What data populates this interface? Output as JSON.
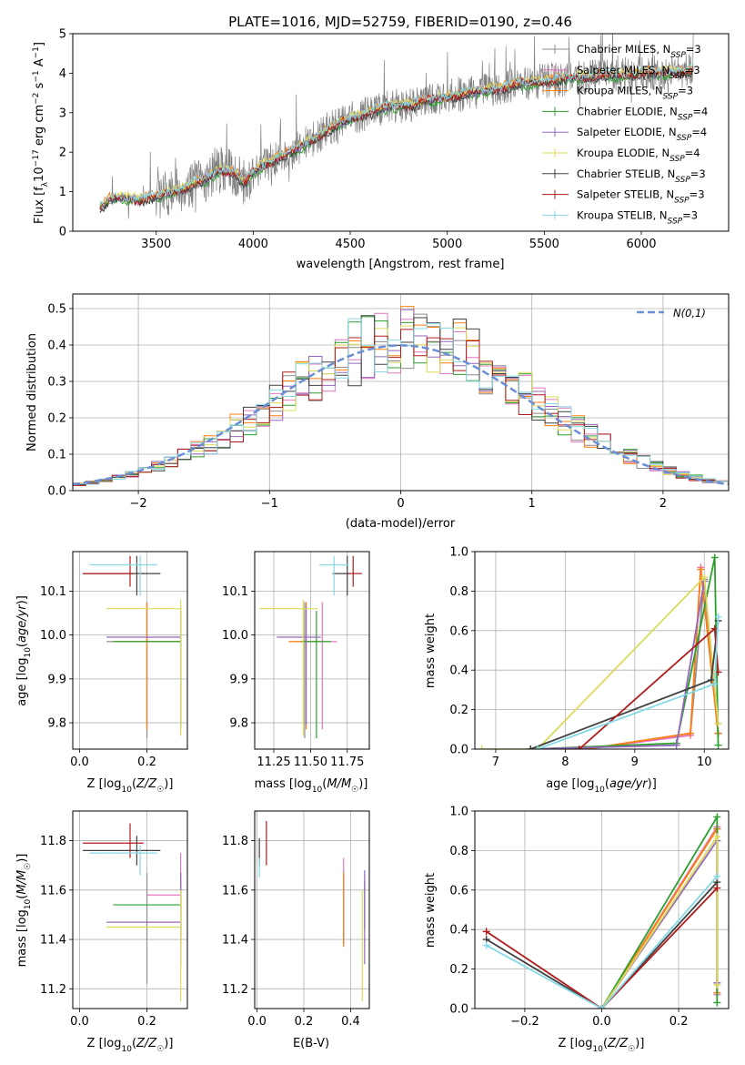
{
  "colors": {
    "Chabrier MILES": "#8c8c8c",
    "Salpeter MILES": "#e377c2",
    "Kroupa MILES": "#ff7f0e",
    "Chabrier ELODIE": "#2ca02c",
    "Salpeter ELODIE": "#9467bd",
    "Kroupa ELODIE": "#dbdb5a",
    "Chabrier STELIB": "#404040",
    "Salpeter STELIB": "#b01c1c",
    "Kroupa STELIB": "#86d9e6",
    "normal": "#6a8fd6"
  },
  "chart_data": [
    {
      "id": "spectrum",
      "type": "line",
      "title": "PLATE=1016, MJD=52759, FIBERID=0190, z=0.46",
      "xlabel": "wavelength [Angstrom, rest frame]",
      "ylabel": "Flux [f_λ10^-17 erg cm^-2 s^-1 A^-1]",
      "xlim": [
        3070,
        6450
      ],
      "ylim": [
        0,
        5
      ],
      "xticks": [
        3500,
        4000,
        4500,
        5000,
        5500,
        6000
      ],
      "yticks": [
        0,
        1,
        2,
        3,
        4,
        5
      ],
      "legend_position": "upper right",
      "legend": [
        {
          "name": "Chabrier MILES",
          "nssp": "3"
        },
        {
          "name": "Salpeter MILES",
          "nssp": "3"
        },
        {
          "name": "Kroupa MILES",
          "nssp": "3"
        },
        {
          "name": "Chabrier ELODIE",
          "nssp": "4"
        },
        {
          "name": "Salpeter ELODIE",
          "nssp": "4"
        },
        {
          "name": "Kroupa ELODIE",
          "nssp": "4"
        },
        {
          "name": "Chabrier STELIB",
          "nssp": "3"
        },
        {
          "name": "Salpeter STELIB",
          "nssp": "3"
        },
        {
          "name": "Kroupa STELIB",
          "nssp": "3"
        }
      ],
      "model_trend": [
        [
          3210,
          0.6
        ],
        [
          3260,
          0.8
        ],
        [
          3320,
          0.85
        ],
        [
          3400,
          0.8
        ],
        [
          3480,
          0.85
        ],
        [
          3550,
          0.95
        ],
        [
          3650,
          1.1
        ],
        [
          3750,
          1.3
        ],
        [
          3830,
          1.55
        ],
        [
          3900,
          1.5
        ],
        [
          3960,
          1.2
        ],
        [
          4000,
          1.5
        ],
        [
          4100,
          1.8
        ],
        [
          4200,
          2.0
        ],
        [
          4300,
          2.3
        ],
        [
          4400,
          2.6
        ],
        [
          4500,
          2.85
        ],
        [
          4600,
          3.0
        ],
        [
          4700,
          3.15
        ],
        [
          4800,
          3.2
        ],
        [
          4900,
          3.3
        ],
        [
          5000,
          3.4
        ],
        [
          5100,
          3.5
        ],
        [
          5200,
          3.55
        ],
        [
          5300,
          3.65
        ],
        [
          5400,
          3.75
        ],
        [
          5500,
          3.8
        ],
        [
          5600,
          3.85
        ],
        [
          5700,
          3.9
        ],
        [
          5800,
          3.95
        ],
        [
          5900,
          3.95
        ],
        [
          6000,
          4.0
        ],
        [
          6100,
          4.0
        ],
        [
          6200,
          4.05
        ],
        [
          6270,
          4.05
        ]
      ]
    },
    {
      "id": "residuals",
      "type": "histogram",
      "xlabel": "(data-model)/error",
      "ylabel": "Normed distribution",
      "xlim": [
        -2.5,
        2.5
      ],
      "ylim": [
        0,
        0.54
      ],
      "xticks": [
        -2,
        -1,
        0,
        1,
        2
      ],
      "yticks": [
        0.0,
        0.1,
        0.2,
        0.3,
        0.4,
        0.5
      ],
      "grid": true,
      "legend_position": "upper right",
      "normal_label": "N(0,1)",
      "bin_width": 0.1
    },
    {
      "id": "age-vs-Z",
      "type": "errorbar",
      "xlabel": "Z [log10(Z/Z☉)]",
      "ylabel": "age [log10(age/yr)]",
      "xlim": [
        -0.02,
        0.32
      ],
      "ylim": [
        9.74,
        10.19
      ],
      "xticks": [
        0.0,
        0.2
      ],
      "yticks": [
        9.8,
        9.9,
        10.0,
        10.1
      ],
      "grid": true,
      "points": [
        {
          "series": "Chabrier MILES",
          "x": 0.2,
          "xerr": [
            0.12,
            0.1
          ],
          "y": 9.985,
          "yerr": [
            0.22,
            0.09
          ]
        },
        {
          "series": "Salpeter MILES",
          "x": 0.2,
          "xerr": [
            0.1,
            0.1
          ],
          "y": 9.985,
          "yerr": [
            0.2,
            0.09
          ]
        },
        {
          "series": "Kroupa MILES",
          "x": 0.2,
          "xerr": [
            0.1,
            0.1
          ],
          "y": 9.985,
          "yerr": [
            0.2,
            0.09
          ]
        },
        {
          "series": "Chabrier ELODIE",
          "x": 0.3,
          "xerr": [
            0.2,
            0.0
          ],
          "y": 9.985,
          "yerr": [
            0.2,
            0.07
          ]
        },
        {
          "series": "Salpeter ELODIE",
          "x": 0.3,
          "xerr": [
            0.22,
            0.0
          ],
          "y": 9.995,
          "yerr": [
            0.2,
            0.07
          ]
        },
        {
          "series": "Kroupa ELODIE",
          "x": 0.3,
          "xerr": [
            0.22,
            0.0
          ],
          "y": 10.06,
          "yerr": [
            0.29,
            0.02
          ]
        },
        {
          "series": "Chabrier STELIB",
          "x": 0.17,
          "xerr": [
            0.16,
            0.07
          ],
          "y": 10.14,
          "yerr": [
            0.05,
            0.04
          ]
        },
        {
          "series": "Salpeter STELIB",
          "x": 0.15,
          "xerr": [
            0.14,
            0.01
          ],
          "y": 10.14,
          "yerr": [
            0.03,
            0.04
          ]
        },
        {
          "series": "Kroupa STELIB",
          "x": 0.18,
          "xerr": [
            0.15,
            0.05
          ],
          "y": 10.16,
          "yerr": [
            0.07,
            0.02
          ]
        }
      ]
    },
    {
      "id": "age-vs-mass",
      "type": "errorbar",
      "xlabel": "mass [log10(M/M☉)]",
      "ylabel": "",
      "xlim": [
        11.12,
        11.9
      ],
      "ylim": [
        9.74,
        10.19
      ],
      "xticks": [
        11.25,
        11.5,
        11.75
      ],
      "yticks": [
        9.8,
        9.9,
        10.0,
        10.1
      ],
      "grid": true,
      "points": [
        {
          "series": "Chabrier MILES",
          "x": 11.46,
          "xerr": [
            0.08,
            0.1
          ],
          "y": 9.985,
          "yerr": [
            0.22,
            0.09
          ]
        },
        {
          "series": "Salpeter MILES",
          "x": 11.58,
          "xerr": [
            0.1,
            0.1
          ],
          "y": 9.985,
          "yerr": [
            0.2,
            0.09
          ]
        },
        {
          "series": "Kroupa MILES",
          "x": 11.47,
          "xerr": [
            0.12,
            0.1
          ],
          "y": 9.985,
          "yerr": [
            0.2,
            0.09
          ]
        },
        {
          "series": "Chabrier ELODIE",
          "x": 11.54,
          "xerr": [
            0.1,
            0.1
          ],
          "y": 9.985,
          "yerr": [
            0.22,
            0.07
          ]
        },
        {
          "series": "Salpeter ELODIE",
          "x": 11.47,
          "xerr": [
            0.2,
            0.1
          ],
          "y": 9.995,
          "yerr": [
            0.2,
            0.07
          ]
        },
        {
          "series": "Kroupa ELODIE",
          "x": 11.45,
          "xerr": [
            0.3,
            0.1
          ],
          "y": 10.06,
          "yerr": [
            0.29,
            0.02
          ]
        },
        {
          "series": "Chabrier STELIB",
          "x": 11.75,
          "xerr": [
            0.1,
            0.02
          ],
          "y": 10.14,
          "yerr": [
            0.05,
            0.04
          ]
        },
        {
          "series": "Salpeter STELIB",
          "x": 11.79,
          "xerr": [
            0.03,
            0.06
          ],
          "y": 10.14,
          "yerr": [
            0.03,
            0.04
          ]
        },
        {
          "series": "Kroupa STELIB",
          "x": 11.66,
          "xerr": [
            0.1,
            0.1
          ],
          "y": 10.16,
          "yerr": [
            0.07,
            0.02
          ]
        }
      ]
    },
    {
      "id": "weight-vs-age",
      "type": "line",
      "xlabel": "age [log10(age/yr)]",
      "ylabel": "mass weight",
      "xlim": [
        6.7,
        10.35
      ],
      "ylim": [
        0,
        1.0
      ],
      "xticks": [
        7,
        8,
        9,
        10
      ],
      "yticks": [
        0.0,
        0.2,
        0.4,
        0.6,
        0.8,
        1.0
      ],
      "grid": true,
      "series": [
        {
          "name": "Chabrier MILES",
          "x": [
            8.3,
            9.8,
            10.0,
            10.2
          ],
          "y": [
            0.0,
            0.08,
            0.86,
            0.08
          ]
        },
        {
          "name": "Salpeter MILES",
          "x": [
            8.3,
            9.8,
            9.95,
            10.2
          ],
          "y": [
            0.0,
            0.07,
            0.92,
            0.08
          ]
        },
        {
          "name": "Kroupa MILES",
          "x": [
            8.3,
            9.8,
            9.95,
            10.2
          ],
          "y": [
            0.0,
            0.08,
            0.91,
            0.08
          ]
        },
        {
          "name": "Chabrier ELODIE",
          "x": [
            7.5,
            9.6,
            10.15,
            10.2
          ],
          "y": [
            0.0,
            0.03,
            0.97,
            0.02
          ]
        },
        {
          "name": "Salpeter ELODIE",
          "x": [
            7.5,
            9.6,
            10.0,
            10.2
          ],
          "y": [
            0.0,
            0.02,
            0.85,
            0.13
          ]
        },
        {
          "name": "Kroupa ELODIE",
          "x": [
            6.8,
            7.6,
            10.0,
            10.2
          ],
          "y": [
            0.0,
            0.0,
            0.87,
            0.13
          ]
        },
        {
          "name": "Chabrier STELIB",
          "x": [
            7.5,
            10.1,
            10.2
          ],
          "y": [
            0.0,
            0.35,
            0.65
          ]
        },
        {
          "name": "Salpeter STELIB",
          "x": [
            8.2,
            10.15,
            10.2
          ],
          "y": [
            0.0,
            0.61,
            0.39
          ]
        },
        {
          "name": "Kroupa STELIB",
          "x": [
            7.6,
            10.15,
            10.2
          ],
          "y": [
            0.0,
            0.33,
            0.67
          ]
        }
      ]
    },
    {
      "id": "mass-vs-Z",
      "type": "errorbar",
      "xlabel": "Z [log10(Z/Z☉)]",
      "ylabel": "mass [log10(M/M☉)]",
      "xlim": [
        -0.02,
        0.32
      ],
      "ylim": [
        11.12,
        11.92
      ],
      "xticks": [
        0.0,
        0.2
      ],
      "yticks": [
        11.2,
        11.4,
        11.6,
        11.8
      ],
      "grid": true,
      "points": [
        {
          "series": "Chabrier MILES",
          "x": 0.2,
          "xerr": [
            0.12,
            0.1
          ],
          "y": 11.47,
          "yerr": [
            0.25,
            0.2
          ]
        },
        {
          "series": "Salpeter MILES",
          "x": 0.3,
          "xerr": [
            0.1,
            0.0
          ],
          "y": 11.58,
          "yerr": [
            0.2,
            0.17
          ]
        },
        {
          "series": "Kroupa MILES",
          "x": 0.3,
          "xerr": [
            0.1,
            0.0
          ],
          "y": 11.47,
          "yerr": [
            0.1,
            0.2
          ]
        },
        {
          "series": "Chabrier ELODIE",
          "x": 0.3,
          "xerr": [
            0.2,
            0.0
          ],
          "y": 11.54,
          "yerr": [
            0.1,
            0.1
          ]
        },
        {
          "series": "Salpeter ELODIE",
          "x": 0.3,
          "xerr": [
            0.22,
            0.0
          ],
          "y": 11.47,
          "yerr": [
            0.18,
            0.2
          ]
        },
        {
          "series": "Kroupa ELODIE",
          "x": 0.3,
          "xerr": [
            0.22,
            0.0
          ],
          "y": 11.45,
          "yerr": [
            0.3,
            0.15
          ]
        },
        {
          "series": "Chabrier STELIB",
          "x": 0.17,
          "xerr": [
            0.16,
            0.07
          ],
          "y": 11.76,
          "yerr": [
            0.06,
            0.06
          ]
        },
        {
          "series": "Salpeter STELIB",
          "x": 0.15,
          "xerr": [
            0.14,
            0.04
          ],
          "y": 11.79,
          "yerr": [
            0.06,
            0.08
          ]
        },
        {
          "series": "Kroupa STELIB",
          "x": 0.18,
          "xerr": [
            0.15,
            0.05
          ],
          "y": 11.75,
          "yerr": [
            0.09,
            0.03
          ]
        }
      ]
    },
    {
      "id": "mass-vs-ebv",
      "type": "errorbar",
      "xlabel": "E(B-V)",
      "ylabel": "",
      "xlim": [
        -0.01,
        0.48
      ],
      "ylim": [
        11.12,
        11.92
      ],
      "xticks": [
        0.0,
        0.2,
        0.4
      ],
      "yticks": [
        11.2,
        11.4,
        11.6,
        11.8
      ],
      "grid": true,
      "points": [
        {
          "series": "Chabrier MILES",
          "x": 0.37,
          "xerr": [
            0.0,
            0.0
          ],
          "y": 11.5,
          "yerr": [
            0.12,
            0.15
          ]
        },
        {
          "series": "Salpeter MILES",
          "x": 0.37,
          "xerr": [
            0.0,
            0.0
          ],
          "y": 11.58,
          "yerr": [
            0.2,
            0.15
          ]
        },
        {
          "series": "Kroupa MILES",
          "x": 0.37,
          "xerr": [
            0.0,
            0.0
          ],
          "y": 11.47,
          "yerr": [
            0.1,
            0.2
          ]
        },
        {
          "series": "Chabrier ELODIE",
          "x": 0.46,
          "xerr": [
            0.0,
            0.0
          ],
          "y": 11.54,
          "yerr": [
            0.1,
            0.1
          ]
        },
        {
          "series": "Salpeter ELODIE",
          "x": 0.46,
          "xerr": [
            0.0,
            0.0
          ],
          "y": 11.5,
          "yerr": [
            0.2,
            0.18
          ]
        },
        {
          "series": "Kroupa ELODIE",
          "x": 0.45,
          "xerr": [
            0.0,
            0.0
          ],
          "y": 11.45,
          "yerr": [
            0.3,
            0.15
          ]
        },
        {
          "series": "Chabrier STELIB",
          "x": 0.01,
          "xerr": [
            0.0,
            0.0
          ],
          "y": 11.76,
          "yerr": [
            0.06,
            0.05
          ]
        },
        {
          "series": "Salpeter STELIB",
          "x": 0.04,
          "xerr": [
            0.0,
            0.0
          ],
          "y": 11.79,
          "yerr": [
            0.09,
            0.09
          ]
        },
        {
          "series": "Kroupa STELIB",
          "x": 0.01,
          "xerr": [
            0.0,
            0.0
          ],
          "y": 11.7,
          "yerr": [
            0.05,
            0.03
          ]
        }
      ]
    },
    {
      "id": "weight-vs-Z",
      "type": "line",
      "xlabel": "Z [log10(Z/Z☉)]",
      "ylabel": "mass weight",
      "xlim": [
        -0.33,
        0.33
      ],
      "ylim": [
        0,
        1.0
      ],
      "xticks": [
        -0.2,
        0.0,
        0.2
      ],
      "yticks": [
        0.0,
        0.2,
        0.4,
        0.6,
        0.8,
        1.0
      ],
      "grid": true,
      "series": [
        {
          "name": "Chabrier MILES",
          "x": [
            0.0,
            0.3,
            0.3
          ],
          "y": [
            0.0,
            0.91,
            0.08
          ]
        },
        {
          "name": "Salpeter MILES",
          "x": [
            0.0,
            0.3,
            0.3
          ],
          "y": [
            0.0,
            0.92,
            0.07
          ]
        },
        {
          "name": "Kroupa MILES",
          "x": [
            0.0,
            0.3,
            0.3
          ],
          "y": [
            0.0,
            0.91,
            0.08
          ]
        },
        {
          "name": "Chabrier ELODIE",
          "x": [
            0.0,
            0.3,
            0.3
          ],
          "y": [
            0.0,
            0.97,
            0.03
          ]
        },
        {
          "name": "Salpeter ELODIE",
          "x": [
            0.0,
            0.3,
            0.3
          ],
          "y": [
            0.0,
            0.85,
            0.13
          ]
        },
        {
          "name": "Kroupa ELODIE",
          "x": [
            0.0,
            0.3,
            0.3
          ],
          "y": [
            0.0,
            0.87,
            0.12
          ]
        },
        {
          "name": "Chabrier STELIB",
          "x": [
            -0.3,
            0.0,
            0.3
          ],
          "y": [
            0.35,
            0.0,
            0.64
          ]
        },
        {
          "name": "Salpeter STELIB",
          "x": [
            -0.3,
            0.0,
            0.3
          ],
          "y": [
            0.39,
            0.0,
            0.61
          ]
        },
        {
          "name": "Kroupa STELIB",
          "x": [
            -0.3,
            0.0,
            0.3
          ],
          "y": [
            0.32,
            0.0,
            0.67
          ]
        }
      ]
    }
  ]
}
